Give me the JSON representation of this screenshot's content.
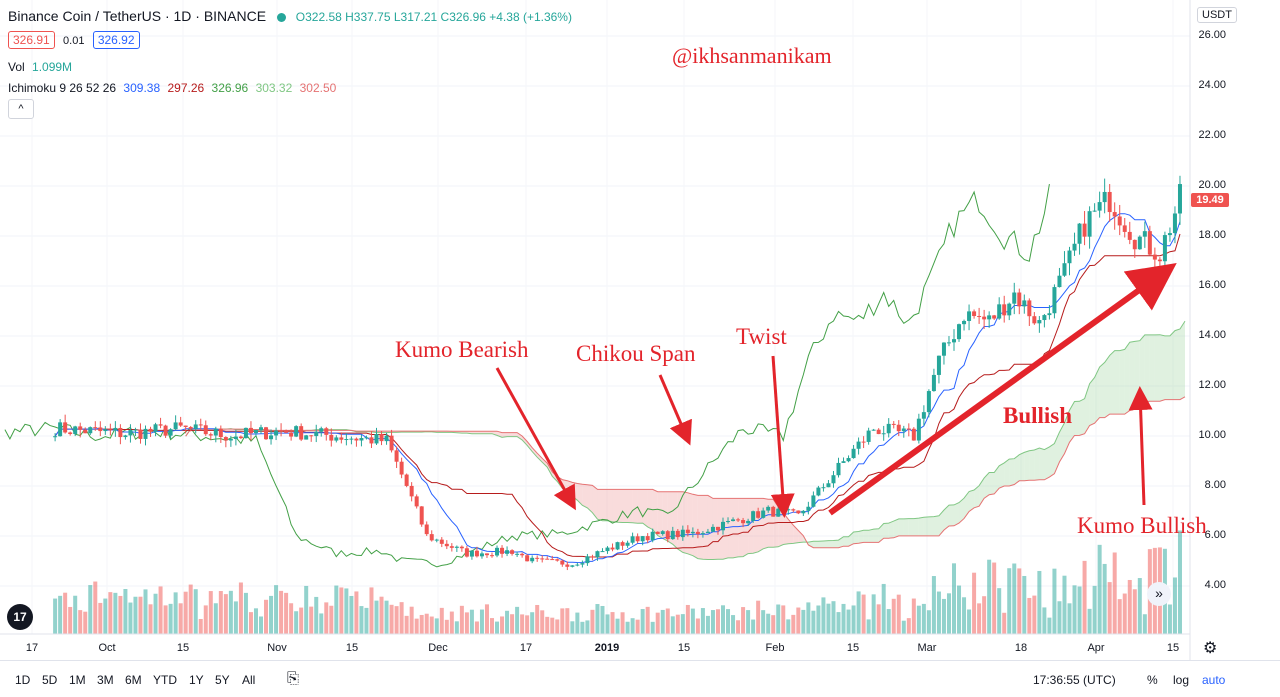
{
  "header": {
    "symbol": "Binance Coin / TetherUS · 1D · BINANCE",
    "ohlc": "O322.58 H337.75 L317.21 C326.96 +4.38 (+1.36%)",
    "bid": "326.91",
    "spread": "0.01",
    "ask": "326.92",
    "vol_label": "Vol",
    "vol_value": "1.099M",
    "ichimoku_label": "Ichimoku 9 26 52 26",
    "ichimoku_values": [
      "309.38",
      "297.26",
      "326.96",
      "303.32",
      "302.50"
    ],
    "collapse_glyph": "^"
  },
  "watermark": "@ikhsanmanikam",
  "price_axis": {
    "currency": "USDT",
    "current_price": "19.49",
    "ticks": [
      "26.00",
      "24.00",
      "22.00",
      "20.00",
      "18.00",
      "16.00",
      "14.00",
      "12.00",
      "10.00",
      "8.00",
      "6.00",
      "4.00"
    ]
  },
  "time_axis": {
    "ticks": [
      "17",
      "Oct",
      "15",
      "Nov",
      "15",
      "Dec",
      "17",
      "2019",
      "15",
      "Feb",
      "15",
      "Mar",
      "18",
      "Apr",
      "15"
    ]
  },
  "annotations": {
    "kumo_bearish": "Kumo Bearish",
    "chikou_span": "Chikou Span",
    "twist": "Twist",
    "bullish": "Bullish",
    "kumo_bullish": "Kumo Bullish"
  },
  "toolbar": {
    "ranges": [
      "1D",
      "5D",
      "1M",
      "3M",
      "6M",
      "YTD",
      "1Y",
      "5Y",
      "All"
    ],
    "clock": "17:36:55 (UTC)",
    "percent": "%",
    "log": "log",
    "auto": "auto"
  },
  "logo_text": "17",
  "scroll_glyph": "»",
  "colors": {
    "up": "#26a69a",
    "down": "#ef5350",
    "tenkan": "#2962ff",
    "kijun": "#b71c1c",
    "chikou": "#43a047",
    "cloud_bull": "#a5d6a7",
    "cloud_bear": "#ef9a9a",
    "annotation": "#e3242b"
  },
  "chart_data": {
    "type": "candlestick",
    "title": "Binance Coin / TetherUS · 1D · BINANCE",
    "ylabel": "USDT",
    "ylim": [
      3.0,
      27.0
    ],
    "x_ticks": [
      "17",
      "Oct",
      "15",
      "Nov",
      "15",
      "Dec",
      "17",
      "2019",
      "15",
      "Feb",
      "15",
      "Mar",
      "18",
      "Apr",
      "15"
    ],
    "close_path": [
      [
        "2018-09-10",
        10.3
      ],
      [
        "2018-09-24",
        10.1
      ],
      [
        "2018-10-05",
        10.3
      ],
      [
        "2018-10-15",
        10.0
      ],
      [
        "2018-10-25",
        10.2
      ],
      [
        "2018-11-05",
        10.0
      ],
      [
        "2018-11-15",
        9.8
      ],
      [
        "2018-11-19",
        8.0
      ],
      [
        "2018-11-23",
        6.0
      ],
      [
        "2018-12-01",
        5.3
      ],
      [
        "2018-12-10",
        5.4
      ],
      [
        "2018-12-14",
        5.0
      ],
      [
        "2018-12-22",
        4.9
      ],
      [
        "2018-12-28",
        5.4
      ],
      [
        "2019-01-05",
        6.0
      ],
      [
        "2019-01-15",
        6.1
      ],
      [
        "2019-01-25",
        6.7
      ],
      [
        "2019-01-30",
        7.0
      ],
      [
        "2019-02-05",
        6.8
      ],
      [
        "2019-02-15",
        9.2
      ],
      [
        "2019-02-20",
        10.3
      ],
      [
        "2019-02-28",
        10.0
      ],
      [
        "2019-03-05",
        13.0
      ],
      [
        "2019-03-10",
        14.9
      ],
      [
        "2019-03-15",
        14.6
      ],
      [
        "2019-03-20",
        15.7
      ],
      [
        "2019-03-25",
        14.5
      ],
      [
        "2019-03-30",
        16.5
      ],
      [
        "2019-04-03",
        18.5
      ],
      [
        "2019-04-08",
        19.5
      ],
      [
        "2019-04-13",
        18.0
      ],
      [
        "2019-04-18",
        17.3
      ],
      [
        "2019-04-22",
        19.5
      ]
    ],
    "volume_level": "relative",
    "series": [
      {
        "name": "Vol"
      },
      {
        "name": "Ichimoku 9 26 52 26"
      }
    ]
  }
}
